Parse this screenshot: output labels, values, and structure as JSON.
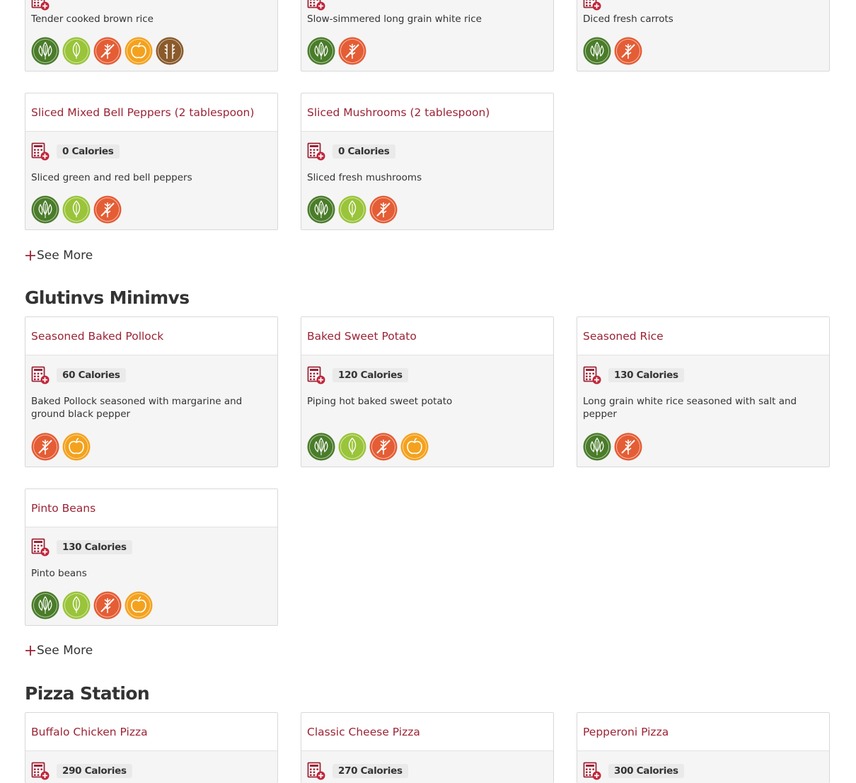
{
  "sections": {
    "glutinvs": {
      "title": "Glutinvs Minimvs"
    },
    "pizza": {
      "title": "Pizza Station"
    }
  },
  "see_more_label": "See More",
  "cards": {
    "brown_rice": {
      "desc": "Tender cooked brown rice"
    },
    "white_rice": {
      "desc": "Slow-simmered long grain white rice"
    },
    "carrots": {
      "desc": "Diced fresh carrots"
    },
    "bell_peppers": {
      "title": "Sliced Mixed Bell Peppers (2 tablespoon)",
      "calories": "0 Calories",
      "desc": "Sliced green and red bell peppers"
    },
    "mushrooms": {
      "title": "Sliced Mushrooms (2 tablespoon)",
      "calories": "0 Calories",
      "desc": "Sliced fresh mushrooms"
    },
    "pollock": {
      "title": "Seasoned Baked Pollock",
      "calories": "60 Calories",
      "desc": "Baked Pollock seasoned with margarine and ground black pepper"
    },
    "sweet_potato": {
      "title": "Baked Sweet Potato",
      "calories": "120 Calories",
      "desc": "Piping hot baked sweet potato"
    },
    "seasoned_rice": {
      "title": "Seasoned Rice",
      "calories": "130 Calories",
      "desc": "Long grain white rice seasoned with salt and pepper"
    },
    "pinto_beans": {
      "title": "Pinto Beans",
      "calories": "130 Calories",
      "desc": "Pinto beans"
    },
    "buffalo_pizza": {
      "title": "Buffalo Chicken Pizza",
      "calories": "290 Calories"
    },
    "cheese_pizza": {
      "title": "Classic Cheese Pizza",
      "calories": "270 Calories"
    },
    "pepperoni_pizza": {
      "title": "Pepperoni Pizza",
      "calories": "300 Calories"
    }
  },
  "badges": {
    "vegan": {
      "label": "VEGAN",
      "color": "#4a7c2a"
    },
    "plant": {
      "label": "PLANT FORWARD",
      "color": "#9ac43a"
    },
    "gluten": {
      "label": "MADE WITHOUT GLUTEN",
      "color": "#e45d35"
    },
    "eatwell": {
      "label": "EAT WELL",
      "color": "#f4a21e"
    },
    "whole": {
      "label": "WHOLE GRAINS",
      "color": "#8a5a2b"
    }
  },
  "colors": {
    "title": "#9b2335",
    "accent_red": "#c0263a"
  },
  "icons": {
    "calculator": "nutrition-calculator-icon",
    "plus": "plus-icon"
  }
}
